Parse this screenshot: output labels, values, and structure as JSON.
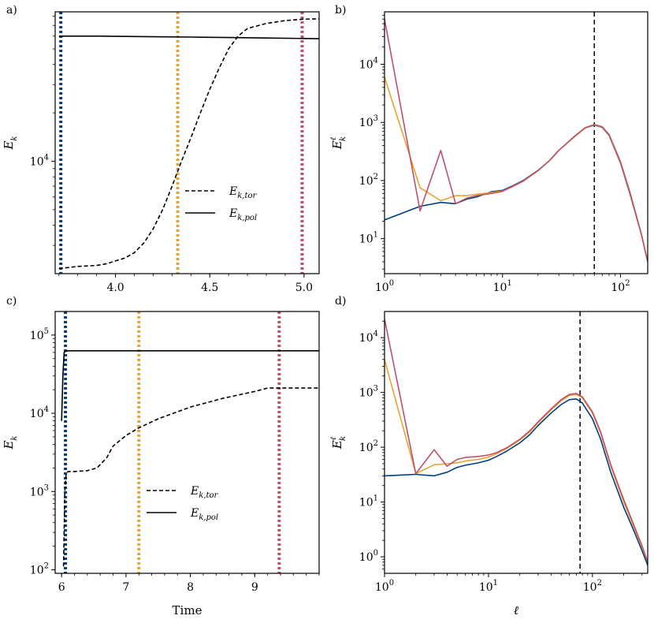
{
  "chart_data": [
    {
      "panel_label": "a)",
      "type": "line",
      "x_scale": "linear",
      "y_scale": "log",
      "xlim": [
        3.68,
        5.08
      ],
      "ylim": [
        2000,
        85000
      ],
      "xticks": [
        4.0,
        4.5,
        5.0
      ],
      "xtick_labels": [
        "4.0",
        "4.5",
        "5.0"
      ],
      "yticks": [
        10000
      ],
      "ytick_labels": [
        {
          "base": "10",
          "exp": "4"
        }
      ],
      "ylabel": {
        "base": "E",
        "sub": "k"
      },
      "xlabel": "",
      "vlines": [
        {
          "x": 3.71,
          "color": "#003f7f"
        },
        {
          "x": 4.33,
          "color": "#e6a532"
        },
        {
          "x": 4.99,
          "color": "#c05068"
        }
      ],
      "series": [
        {
          "name": {
            "base": "E",
            "sub": "k,tor"
          },
          "style": "dashed",
          "x": [
            3.7,
            3.8,
            3.9,
            3.95,
            4.0,
            4.05,
            4.1,
            4.15,
            4.2,
            4.25,
            4.3,
            4.35,
            4.4,
            4.45,
            4.5,
            4.55,
            4.6,
            4.65,
            4.7,
            4.8,
            4.9,
            5.0,
            5.08
          ],
          "y": [
            2150,
            2220,
            2250,
            2300,
            2400,
            2500,
            2700,
            3100,
            3800,
            5000,
            7000,
            10000,
            14000,
            20000,
            28000,
            38000,
            50000,
            60000,
            67000,
            72000,
            75000,
            76500,
            77000
          ]
        },
        {
          "name": {
            "base": "E",
            "sub": "k,pol"
          },
          "style": "solid",
          "x": [
            3.7,
            3.8,
            3.9,
            4.0,
            4.2,
            4.4,
            4.6,
            4.8,
            5.0,
            5.08
          ],
          "y": [
            60000,
            60000,
            60000,
            59800,
            59500,
            59200,
            58800,
            58400,
            58000,
            57800
          ]
        }
      ],
      "legend": {
        "placement": "center-right"
      }
    },
    {
      "panel_label": "b)",
      "type": "line",
      "x_scale": "log",
      "y_scale": "log",
      "xlim": [
        1,
        170
      ],
      "ylim": [
        2.5,
        80000
      ],
      "xticks": [
        1,
        10,
        100
      ],
      "xtick_labels": [
        {
          "base": "10",
          "exp": "0"
        },
        {
          "base": "10",
          "exp": "1"
        },
        {
          "base": "10",
          "exp": "2"
        }
      ],
      "yticks": [
        10,
        100,
        1000,
        10000
      ],
      "ytick_labels": [
        {
          "base": "10",
          "exp": "1"
        },
        {
          "base": "10",
          "exp": "2"
        },
        {
          "base": "10",
          "exp": "3"
        },
        {
          "base": "10",
          "exp": "4"
        }
      ],
      "ylabel": {
        "base": "E",
        "sup": "ℓ",
        "sub": "k"
      },
      "xlabel": "",
      "vlines": [
        {
          "x": 60,
          "color": "#000000",
          "style": "dashed"
        }
      ],
      "series": [
        {
          "color": "#003f7f",
          "x": [
            1,
            2,
            3,
            4,
            5,
            6,
            8,
            10,
            12,
            15,
            20,
            25,
            30,
            40,
            50,
            60,
            70,
            80,
            100,
            120,
            150,
            170
          ],
          "y": [
            21,
            36,
            42,
            40,
            48,
            52,
            64,
            68,
            80,
            100,
            150,
            220,
            330,
            550,
            800,
            900,
            820,
            600,
            200,
            60,
            12,
            4
          ]
        },
        {
          "color": "#e6a532",
          "x": [
            1,
            2,
            3,
            4,
            5,
            6,
            8,
            10,
            12,
            15,
            20,
            25,
            30,
            40,
            50,
            60,
            70,
            80,
            100,
            120,
            150,
            170
          ],
          "y": [
            6000,
            75,
            45,
            55,
            55,
            58,
            62,
            66,
            78,
            98,
            148,
            220,
            330,
            550,
            800,
            910,
            830,
            610,
            205,
            62,
            12,
            4
          ]
        },
        {
          "color": "#c05068",
          "x": [
            1,
            2,
            3,
            4,
            5,
            6,
            8,
            10,
            12,
            15,
            20,
            25,
            30,
            40,
            50,
            60,
            70,
            80,
            100,
            120,
            150,
            170
          ],
          "y": [
            60000,
            30,
            330,
            40,
            50,
            55,
            60,
            65,
            78,
            98,
            148,
            220,
            330,
            560,
            810,
            920,
            840,
            620,
            210,
            64,
            12,
            4
          ]
        }
      ]
    },
    {
      "panel_label": "c)",
      "type": "line",
      "x_scale": "linear",
      "y_scale": "log",
      "xlim": [
        5.9,
        10.0
      ],
      "ylim": [
        90,
        200000
      ],
      "xticks": [
        6,
        7,
        8,
        9
      ],
      "xtick_labels": [
        "6",
        "7",
        "8",
        "9"
      ],
      "yticks": [
        100,
        1000,
        10000,
        100000
      ],
      "ytick_labels": [
        {
          "base": "10",
          "exp": "2"
        },
        {
          "base": "10",
          "exp": "3"
        },
        {
          "base": "10",
          "exp": "4"
        },
        {
          "base": "10",
          "exp": "5"
        }
      ],
      "ylabel": {
        "base": "E",
        "sub": "k"
      },
      "xlabel": "Time",
      "vlines": [
        {
          "x": 6.06,
          "color": "#003f7f"
        },
        {
          "x": 7.2,
          "color": "#e6a532"
        },
        {
          "x": 9.38,
          "color": "#c05068"
        }
      ],
      "series": [
        {
          "name": {
            "base": "E",
            "sub": "k,tor"
          },
          "style": "dashed",
          "x": [
            6.03,
            6.05,
            6.07,
            6.1,
            6.2,
            6.4,
            6.55,
            6.7,
            6.8,
            7.0,
            7.2,
            7.5,
            8.0,
            8.5,
            9.0,
            9.2,
            9.5,
            10.0
          ],
          "y": [
            110,
            1000,
            1700,
            1800,
            1800,
            1850,
            2000,
            2700,
            3800,
            5200,
            6500,
            8500,
            12000,
            15500,
            19000,
            21000,
            21000,
            21000
          ]
        },
        {
          "name": {
            "base": "E",
            "sub": "k,pol"
          },
          "style": "solid",
          "x": [
            6.0,
            6.02,
            6.04,
            6.06,
            6.1,
            6.5,
            7.0,
            8.0,
            9.0,
            10.0
          ],
          "y": [
            8000,
            30000,
            60000,
            62000,
            63000,
            63000,
            63000,
            63000,
            63000,
            63000
          ]
        }
      ],
      "legend": {
        "placement": "lower-center"
      }
    },
    {
      "panel_label": "d)",
      "type": "line",
      "x_scale": "log",
      "y_scale": "log",
      "xlim": [
        1,
        340
      ],
      "ylim": [
        0.5,
        30000
      ],
      "xticks": [
        1,
        10,
        100
      ],
      "xtick_labels": [
        {
          "base": "10",
          "exp": "0"
        },
        {
          "base": "10",
          "exp": "1"
        },
        {
          "base": "10",
          "exp": "2"
        }
      ],
      "yticks": [
        1,
        10,
        100,
        1000,
        10000
      ],
      "ytick_labels": [
        {
          "base": "10",
          "exp": "0"
        },
        {
          "base": "10",
          "exp": "1"
        },
        {
          "base": "10",
          "exp": "2"
        },
        {
          "base": "10",
          "exp": "3"
        },
        {
          "base": "10",
          "exp": "4"
        }
      ],
      "ylabel": {
        "base": "E",
        "sup": "ℓ",
        "sub": "k"
      },
      "xlabel": "ℓ",
      "vlines": [
        {
          "x": 76,
          "color": "#000000",
          "style": "dashed"
        }
      ],
      "series": [
        {
          "color": "#003f7f",
          "x": [
            1,
            2,
            3,
            4,
            5,
            6,
            8,
            10,
            12,
            15,
            20,
            25,
            30,
            40,
            50,
            60,
            70,
            80,
            100,
            120,
            150,
            200,
            250,
            300,
            340
          ],
          "y": [
            30,
            32,
            30,
            35,
            43,
            47,
            52,
            58,
            68,
            85,
            120,
            170,
            250,
            420,
            600,
            740,
            760,
            640,
            330,
            140,
            35,
            8,
            3,
            1.3,
            0.7
          ]
        },
        {
          "color": "#e6a532",
          "x": [
            1,
            2,
            3,
            4,
            5,
            6,
            8,
            10,
            12,
            15,
            20,
            25,
            30,
            40,
            50,
            60,
            70,
            80,
            100,
            120,
            150,
            200,
            250,
            300,
            340
          ],
          "y": [
            4000,
            33,
            48,
            50,
            52,
            56,
            60,
            66,
            76,
            95,
            135,
            190,
            280,
            480,
            700,
            880,
            920,
            800,
            420,
            180,
            45,
            10,
            3.5,
            1.5,
            0.8
          ]
        },
        {
          "color": "#c05068",
          "x": [
            1,
            2,
            3,
            4,
            5,
            6,
            8,
            10,
            12,
            15,
            20,
            25,
            30,
            40,
            50,
            60,
            70,
            80,
            100,
            120,
            150,
            200,
            250,
            300,
            340
          ],
          "y": [
            22000,
            33,
            90,
            45,
            60,
            65,
            68,
            72,
            80,
            98,
            140,
            200,
            290,
            500,
            740,
            920,
            960,
            830,
            440,
            190,
            48,
            11,
            3.8,
            1.6,
            0.8
          ]
        }
      ]
    }
  ]
}
